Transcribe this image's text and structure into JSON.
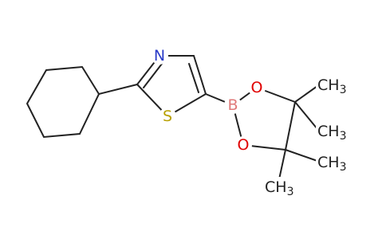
{
  "atoms": {
    "nitrogen": "N",
    "sulfur": "S",
    "boron": "B",
    "oxygen_top": "O",
    "oxygen_bottom": "O",
    "methyls": [
      {
        "main": "CH",
        "sub": "3"
      },
      {
        "main": "CH",
        "sub": "3"
      },
      {
        "main": "CH",
        "sub": "3"
      },
      {
        "main": "CH",
        "sub": "3"
      }
    ]
  }
}
